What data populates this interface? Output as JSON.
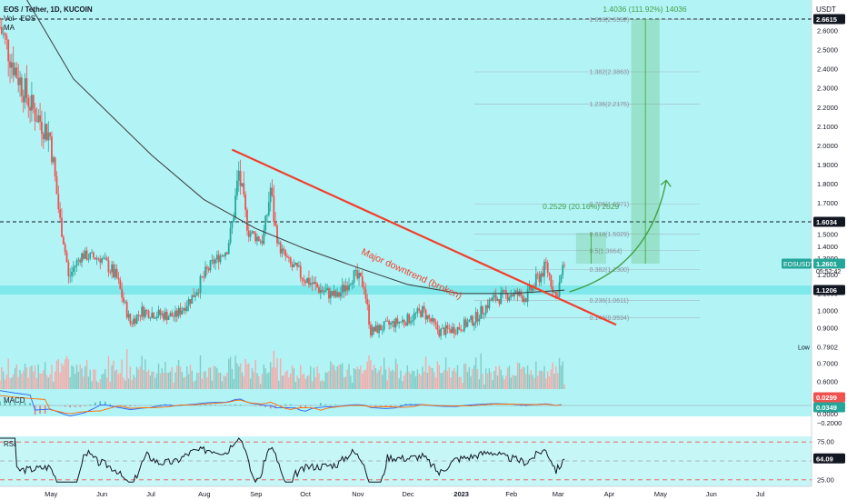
{
  "header": {
    "symbol_line": "EOS / Tether, 1D, KUCOIN",
    "legend_line2": "Vol · EOS",
    "legend_line3": "MA",
    "price_unit": "USDT"
  },
  "price_axis": {
    "ticks": [
      "2.6000",
      "2.5000",
      "2.4000",
      "2.3000",
      "2.2000",
      "2.1000",
      "2.0000",
      "1.9000",
      "1.8000",
      "1.7000",
      "1.6000",
      "1.5000",
      "1.4000",
      "1.3000",
      "1.2000",
      "1.1000",
      "1.0000",
      "0.9000",
      "0.7902",
      "0.7000",
      "0.6000"
    ],
    "top_tag": "2.6615",
    "level_tag": "1.6034",
    "price_tag": "1.2601",
    "countdown": "05:52:42",
    "symbol_tag": "EOSUSDT",
    "support_tag": "1.1206",
    "low_label": "Low"
  },
  "time_axis": [
    "May",
    "Jun",
    "Jul",
    "Aug",
    "Sep",
    "Oct",
    "Nov",
    "Dec",
    "2023",
    "Feb",
    "Mar",
    "Apr",
    "May",
    "Jun",
    "Jul"
  ],
  "fib_levels": [
    {
      "label": "1.618(2.6592)"
    },
    {
      "label": "1.382(2.3863)"
    },
    {
      "label": "1.236(2.2175)"
    },
    {
      "label": "0.786(1.6971)"
    },
    {
      "label": "0.618(1.5029)"
    },
    {
      "label": "0.5(1.3664)"
    },
    {
      "label": "0.382(1.2300)"
    },
    {
      "label": "0.236(1.0611)"
    },
    {
      "label": "0.146(0.9594)"
    }
  ],
  "annotations": {
    "trendline_label": "Major downtrend (broken)",
    "long_target": "1.4036 (111.92%) 14036",
    "short_target": "0.2529 (20.16%) 2529"
  },
  "macd": {
    "label": "MACD",
    "ticks": [
      "0.0000",
      "−0.2000"
    ],
    "tag_red": "0.0299",
    "tag_green": "0.0349"
  },
  "rsi": {
    "label": "RSI",
    "ticks": [
      "75.00",
      "50.00",
      "25.00"
    ],
    "tag": "64.09"
  },
  "colors": {
    "up": "#26a69a",
    "down": "#ef5350",
    "trendline": "#f23f2c",
    "arrow": "#43a047",
    "ma": "#3a3a3a",
    "support_band": "#7fe8ea",
    "bg_band": "#b2f3f6",
    "fib_text": "#8a9099",
    "macd_line": "#2962ff",
    "signal_line": "#ff6d00",
    "rsi_line": "#131722"
  },
  "chart_data": {
    "type": "candlestick",
    "symbol": "EOS / Tether",
    "timeframe": "1D",
    "exchange": "KUCOIN",
    "y_axis": {
      "min": 0.55,
      "max": 2.7,
      "unit": "USDT"
    },
    "x_axis": {
      "start": "2022-04-01",
      "end": "2023-07-31"
    },
    "last_price": 1.2601,
    "price_path": [
      {
        "date": "2022-04-01",
        "price": 2.62
      },
      {
        "date": "2022-04-10",
        "price": 2.4
      },
      {
        "date": "2022-04-20",
        "price": 2.2
      },
      {
        "date": "2022-05-01",
        "price": 2.05
      },
      {
        "date": "2022-05-09",
        "price": 1.45
      },
      {
        "date": "2022-05-12",
        "price": 1.18
      },
      {
        "date": "2022-05-20",
        "price": 1.33
      },
      {
        "date": "2022-06-01",
        "price": 1.3
      },
      {
        "date": "2022-06-10",
        "price": 1.18
      },
      {
        "date": "2022-06-18",
        "price": 0.93
      },
      {
        "date": "2022-06-25",
        "price": 1.0
      },
      {
        "date": "2022-07-05",
        "price": 0.98
      },
      {
        "date": "2022-07-15",
        "price": 0.97
      },
      {
        "date": "2022-07-25",
        "price": 1.08
      },
      {
        "date": "2022-08-05",
        "price": 1.25
      },
      {
        "date": "2022-08-15",
        "price": 1.38
      },
      {
        "date": "2022-08-22",
        "price": 1.86
      },
      {
        "date": "2022-08-28",
        "price": 1.52
      },
      {
        "date": "2022-09-05",
        "price": 1.45
      },
      {
        "date": "2022-09-10",
        "price": 1.78
      },
      {
        "date": "2022-09-15",
        "price": 1.4
      },
      {
        "date": "2022-09-22",
        "price": 1.25
      },
      {
        "date": "2022-10-01",
        "price": 1.18
      },
      {
        "date": "2022-10-10",
        "price": 1.12
      },
      {
        "date": "2022-10-20",
        "price": 1.08
      },
      {
        "date": "2022-10-29",
        "price": 1.2
      },
      {
        "date": "2022-11-05",
        "price": 1.15
      },
      {
        "date": "2022-11-09",
        "price": 0.88
      },
      {
        "date": "2022-11-20",
        "price": 0.92
      },
      {
        "date": "2022-12-01",
        "price": 0.95
      },
      {
        "date": "2022-12-10",
        "price": 1.0
      },
      {
        "date": "2022-12-20",
        "price": 0.88
      },
      {
        "date": "2022-12-31",
        "price": 0.9
      },
      {
        "date": "2023-01-10",
        "price": 0.95
      },
      {
        "date": "2023-01-20",
        "price": 1.06
      },
      {
        "date": "2023-02-01",
        "price": 1.1
      },
      {
        "date": "2023-02-10",
        "price": 1.08
      },
      {
        "date": "2023-02-17",
        "price": 1.18
      },
      {
        "date": "2023-02-22",
        "price": 1.25
      },
      {
        "date": "2023-02-28",
        "price": 1.08
      },
      {
        "date": "2023-03-05",
        "price": 1.26
      }
    ],
    "moving_average": [
      {
        "date": "2022-04-01",
        "price": 3.0
      },
      {
        "date": "2022-05-15",
        "price": 2.35
      },
      {
        "date": "2022-07-01",
        "price": 1.95
      },
      {
        "date": "2022-08-01",
        "price": 1.72
      },
      {
        "date": "2022-09-01",
        "price": 1.55
      },
      {
        "date": "2022-10-01",
        "price": 1.38
      },
      {
        "date": "2022-11-01",
        "price": 1.24
      },
      {
        "date": "2022-12-01",
        "price": 1.15
      },
      {
        "date": "2023-01-01",
        "price": 1.1
      },
      {
        "date": "2023-02-01",
        "price": 1.1
      },
      {
        "date": "2023-03-05",
        "price": 1.12
      }
    ],
    "trendline": [
      {
        "date": "2022-08-18",
        "price": 1.98
      },
      {
        "date": "2023-04-05",
        "price": 0.92
      }
    ],
    "horizontal_levels": [
      2.6615,
      1.6034,
      1.1206
    ],
    "fibonacci": [
      {
        "ratio": 1.618,
        "price": 2.6592
      },
      {
        "ratio": 1.382,
        "price": 2.3863
      },
      {
        "ratio": 1.236,
        "price": 2.2175
      },
      {
        "ratio": 0.786,
        "price": 1.6971
      },
      {
        "ratio": 0.618,
        "price": 1.5029
      },
      {
        "ratio": 0.5,
        "price": 1.3664
      },
      {
        "ratio": 0.382,
        "price": 1.23
      },
      {
        "ratio": 0.236,
        "price": 1.0611
      },
      {
        "ratio": 0.146,
        "price": 0.9594
      }
    ],
    "price_ranges": [
      {
        "from": 1.26,
        "to": 2.6615,
        "change": 1.4036,
        "percent": 111.92
      },
      {
        "from": 1.26,
        "to": 1.5129,
        "change": 0.2529,
        "percent": 20.16
      }
    ],
    "macd_last": {
      "macd": 0.0299,
      "signal": 0.0349
    },
    "rsi_last": 64.09,
    "rsi_levels": [
      75,
      50,
      25
    ]
  }
}
